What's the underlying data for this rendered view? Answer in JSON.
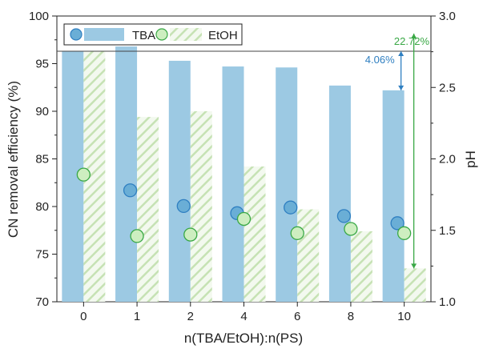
{
  "chart_data": {
    "type": "bar",
    "categories": [
      "0",
      "1",
      "2",
      "4",
      "6",
      "8",
      "10"
    ],
    "series": [
      {
        "name": "TBA",
        "axis": "left",
        "kind": "bar",
        "color": "#9cc9e3",
        "values": [
          96.3,
          96.8,
          95.3,
          94.7,
          94.6,
          92.7,
          92.2
        ]
      },
      {
        "name": "EtOH",
        "axis": "left",
        "kind": "bar-hatched",
        "color": "#c9e2bb",
        "values": [
          96.3,
          89.4,
          90.0,
          84.2,
          79.7,
          77.4,
          73.5
        ]
      }
    ],
    "ph_series": [
      {
        "name": "TBA",
        "kind": "marker",
        "color": "#6aaed6",
        "edge": "#2f7fc1",
        "values": [
          null,
          1.78,
          1.67,
          1.62,
          1.66,
          1.6,
          1.55
        ]
      },
      {
        "name": "EtOH",
        "kind": "marker",
        "color": "#cdeec0",
        "edge": "#39a845",
        "values": [
          1.89,
          1.46,
          1.47,
          1.58,
          1.48,
          1.51,
          1.48
        ]
      }
    ],
    "xlabel": "n(TBA/EtOH):n(PS)",
    "ylabel": "CN removal efficiency (%)",
    "ylabel_right": "pH",
    "ylim": [
      70,
      100
    ],
    "ylim_right": [
      1.0,
      3.0
    ],
    "yticks": [
      "70",
      "75",
      "80",
      "85",
      "90",
      "95",
      "100"
    ],
    "yticks_right": [
      "1.0",
      "1.5",
      "2.0",
      "2.5",
      "3.0"
    ],
    "reference_line": 96.3,
    "legend": {
      "placement": "top-left",
      "entries": [
        "TBA",
        "EtOH"
      ]
    },
    "annotations": [
      {
        "text": "4.06%",
        "color": "#2f7fc1",
        "from": 96.3,
        "to": 92.2,
        "category": "10"
      },
      {
        "text": "22.72%",
        "color": "#39a845",
        "from": 96.3,
        "to": 73.5,
        "category": "10"
      }
    ]
  }
}
